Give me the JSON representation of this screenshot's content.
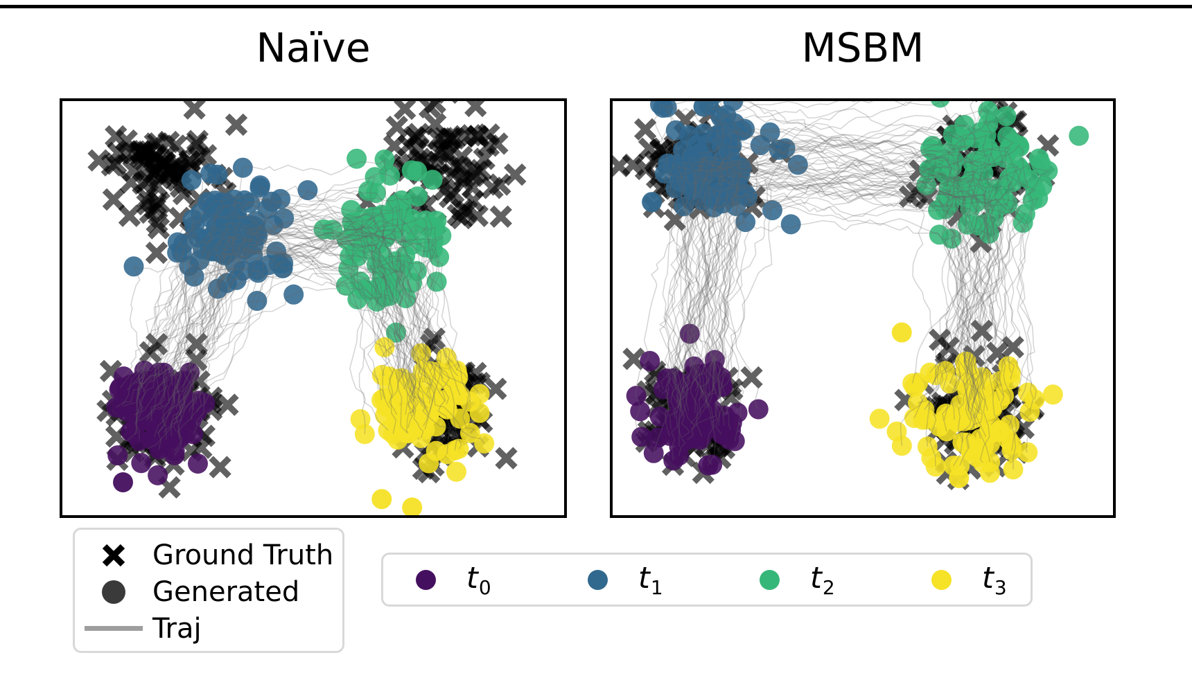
{
  "marker_legend": {
    "items": [
      {
        "label": "Ground Truth",
        "marker": "x-marker-icon"
      },
      {
        "label": "Generated",
        "marker": "filled-circle-icon"
      },
      {
        "label": "Traj",
        "marker": "line-icon"
      }
    ]
  },
  "timestep_legend": {
    "items": [
      {
        "base": "t",
        "sub": "0"
      },
      {
        "base": "t",
        "sub": "1"
      },
      {
        "base": "t",
        "sub": "2"
      },
      {
        "base": "t",
        "sub": "3"
      }
    ]
  },
  "chart_data": {
    "type": "scatter",
    "title": "",
    "axes": {
      "x_visible": false,
      "y_visible": false,
      "frame": true,
      "grid": false
    },
    "timesteps": [
      {
        "label": "t0",
        "color": "#450f5f"
      },
      {
        "label": "t1",
        "color": "#31688e"
      },
      {
        "label": "t2",
        "color": "#35b779"
      },
      {
        "label": "t3",
        "color": "#f6e226"
      }
    ],
    "style": {
      "ground_truth_color": "#000000",
      "ground_truth_alpha": 0.62,
      "trajectory_color": "#646464",
      "trajectory_alpha": 0.28,
      "legend_generated_color": "#3a3a3a",
      "legend_traj_color": "#9e9e9e"
    },
    "panels": [
      {
        "title": "Naïve",
        "ground_truth": [
          {
            "t": "t0",
            "center": [
              0.198,
              0.751
            ],
            "std": 0.055,
            "n": 75
          },
          {
            "t": "t1",
            "center": [
              0.205,
              0.173
            ],
            "std": 0.057,
            "n": 75
          },
          {
            "t": "t2",
            "center": [
              0.758,
              0.157
            ],
            "std": 0.058,
            "n": 75
          },
          {
            "t": "t3",
            "center": [
              0.758,
              0.759
            ],
            "std": 0.055,
            "n": 75
          }
        ],
        "generated": [
          {
            "t": "t0",
            "center": [
              0.191,
              0.743
            ],
            "std": 0.049,
            "n": 90,
            "outliers": [
              [
                0.125,
                0.915
              ]
            ]
          },
          {
            "t": "t1",
            "center": [
              0.321,
              0.33
            ],
            "std": 0.06,
            "n": 90,
            "outliers": [
              [
                0.44,
                0.405
              ]
            ]
          },
          {
            "t": "t2",
            "center": [
              0.642,
              0.347
            ],
            "std": 0.062,
            "n": 90,
            "outliers": []
          },
          {
            "t": "t3",
            "center": [
              0.724,
              0.743
            ],
            "std": 0.055,
            "n": 90,
            "outliers": [
              [
                0.635,
                0.955
              ],
              [
                0.695,
                0.975
              ]
            ]
          }
        ],
        "trajectories": {
          "n": 55,
          "path_order": [
            "t0",
            "t1",
            "t2",
            "t3"
          ]
        }
      },
      {
        "title": "MSBM",
        "ground_truth": [
          {
            "t": "t0",
            "center": [
              0.16,
              0.756
            ],
            "std": 0.055,
            "n": 75
          },
          {
            "t": "t1",
            "center": [
              0.171,
              0.17
            ],
            "std": 0.057,
            "n": 75
          },
          {
            "t": "t2",
            "center": [
              0.734,
              0.162
            ],
            "std": 0.058,
            "n": 75
          },
          {
            "t": "t3",
            "center": [
              0.727,
              0.756
            ],
            "std": 0.055,
            "n": 75
          }
        ],
        "generated": [
          {
            "t": "t0",
            "center": [
              0.167,
              0.756
            ],
            "std": 0.049,
            "n": 90,
            "outliers": []
          },
          {
            "t": "t1",
            "center": [
              0.205,
              0.162
            ],
            "std": 0.059,
            "n": 90,
            "outliers": [
              [
                0.185,
                0.02
              ],
              [
                0.083,
                0.247
              ]
            ]
          },
          {
            "t": "t2",
            "center": [
              0.74,
              0.178
            ],
            "std": 0.061,
            "n": 90,
            "outliers": []
          },
          {
            "t": "t3",
            "center": [
              0.713,
              0.772
            ],
            "std": 0.055,
            "n": 90,
            "outliers": [
              [
                0.577,
                0.558
              ],
              [
                0.69,
                0.905
              ]
            ]
          }
        ],
        "trajectories": {
          "n": 55,
          "path_order": [
            "t0",
            "t1",
            "t2",
            "t3"
          ]
        }
      }
    ]
  }
}
